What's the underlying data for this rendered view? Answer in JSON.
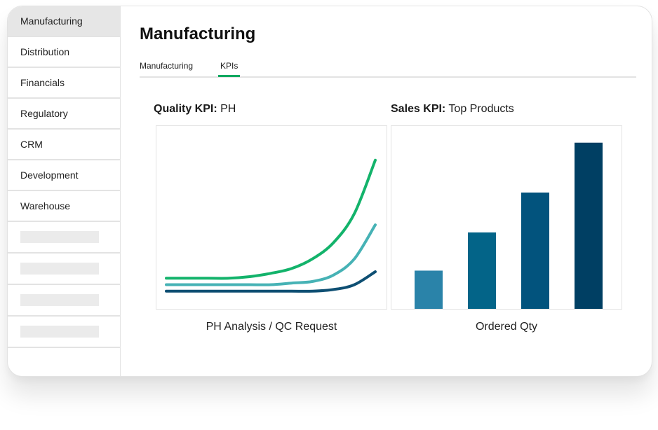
{
  "sidebar": {
    "items": [
      {
        "label": "Manufacturing",
        "active": true
      },
      {
        "label": "Distribution",
        "active": false
      },
      {
        "label": "Financials",
        "active": false
      },
      {
        "label": "Regulatory",
        "active": false
      },
      {
        "label": "CRM",
        "active": false
      },
      {
        "label": "Development",
        "active": false
      },
      {
        "label": "Warehouse",
        "active": false
      }
    ]
  },
  "main": {
    "title": "Manufacturing",
    "tabs": [
      {
        "label": "Manufacturing",
        "active": false
      },
      {
        "label": "KPIs",
        "active": true
      }
    ]
  },
  "quality_panel": {
    "title_bold": "Quality KPI:",
    "title_rest": " PH",
    "caption": "PH Analysis / QC Request"
  },
  "sales_panel": {
    "title_bold": "Sales KPI:",
    "title_rest": " Top Products",
    "caption": "Ordered Qty"
  },
  "colors": {
    "accent": "#11a860",
    "line_green": "#13b36b",
    "line_teal": "#46b2b5",
    "line_navy": "#0e4f73",
    "bar_1": "#2a83a9",
    "bar_2": "#036488",
    "bar_3": "#02537d",
    "bar_4": "#003f63"
  },
  "chart_data": [
    {
      "type": "line",
      "series": [
        {
          "values": [
            0.12,
            0.12,
            0.12,
            0.12,
            0.13,
            0.15,
            0.18,
            0.24,
            0.34,
            0.52,
            0.85
          ]
        },
        {
          "values": [
            0.08,
            0.08,
            0.08,
            0.08,
            0.08,
            0.08,
            0.09,
            0.1,
            0.14,
            0.24,
            0.45
          ]
        },
        {
          "values": [
            0.04,
            0.04,
            0.04,
            0.04,
            0.04,
            0.04,
            0.04,
            0.04,
            0.05,
            0.08,
            0.16
          ]
        }
      ],
      "ylim": [
        0,
        1
      ]
    },
    {
      "type": "bar",
      "values": [
        0.23,
        0.46,
        0.7,
        1.0
      ],
      "ylim": [
        0,
        1.1
      ]
    }
  ]
}
